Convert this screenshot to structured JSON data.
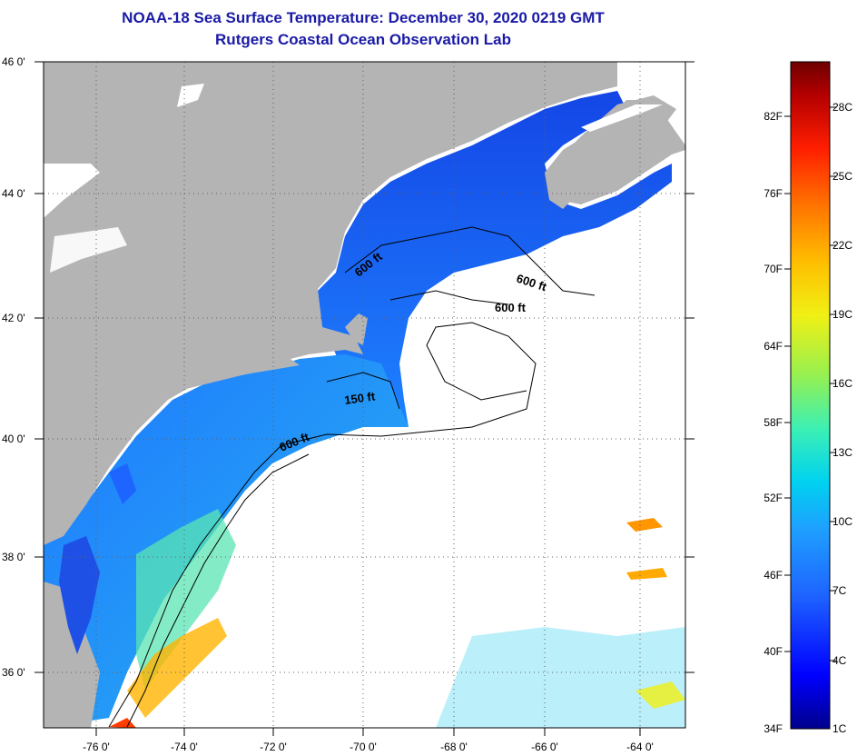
{
  "title": {
    "line1": "NOAA-18 Sea Surface Temperature:  December 30, 2020 0219 GMT",
    "line2": "Rutgers Coastal Ocean Observation Lab"
  },
  "map": {
    "lat_labels": [
      "46 0'",
      "44 0'",
      "42 0'",
      "40 0'",
      "38 0'",
      "36 0'"
    ],
    "lon_labels": [
      "-76 0'",
      "-74 0'",
      "-72 0'",
      "-70 0'",
      "-68 0'",
      "-66 0'",
      "-64 0'"
    ],
    "contour_labels": [
      "600 ft",
      "600 ft",
      "600 ft",
      "150 ft",
      "600 ft"
    ],
    "land_color": "#b4b4b4",
    "contour_color": "#000000"
  },
  "color_scale": {
    "fahrenheit_labels": [
      "82F",
      "76F",
      "70F",
      "64F",
      "58F",
      "52F",
      "46F",
      "40F",
      "34F"
    ],
    "celsius_labels": [
      "28C",
      "25C",
      "22C",
      "19C",
      "16C",
      "13C",
      "10C",
      "7C",
      "4C",
      "1C"
    ],
    "gradient_colors": [
      "#00008c",
      "#0000ff",
      "#1e64ff",
      "#1ea0ff",
      "#00d2f0",
      "#3cf0b4",
      "#96f050",
      "#f0f014",
      "#ffbe00",
      "#ff7800",
      "#ff1e00",
      "#b40000",
      "#6e0000"
    ]
  }
}
